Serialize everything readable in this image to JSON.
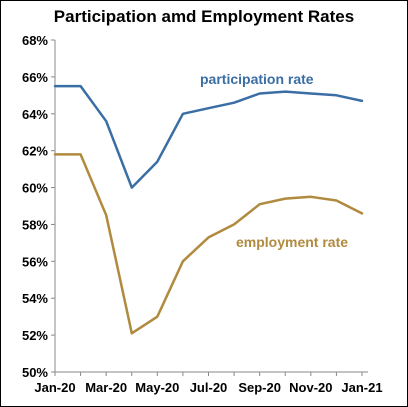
{
  "chart_data": {
    "type": "line",
    "title": "Participation amd Employment Rates",
    "xlabel": "",
    "ylabel": "",
    "x": [
      "Jan-20",
      "Feb-20",
      "Mar-20",
      "Apr-20",
      "May-20",
      "Jun-20",
      "Jul-20",
      "Aug-20",
      "Sep-20",
      "Oct-20",
      "Nov-20",
      "Dec-20",
      "Jan-21"
    ],
    "x_tick_labels": [
      "Jan-20",
      "Mar-20",
      "May-20",
      "Jul-20",
      "Sep-20",
      "Nov-20",
      "Jan-21"
    ],
    "y_tick_labels": [
      "50%",
      "52%",
      "54%",
      "56%",
      "58%",
      "60%",
      "62%",
      "64%",
      "66%",
      "68%"
    ],
    "ylim": [
      50,
      68
    ],
    "grid": false,
    "legend": "inline labels",
    "series": [
      {
        "name": "participation rate",
        "color": "#3a6ea5",
        "values": [
          65.5,
          65.5,
          63.6,
          60.0,
          61.4,
          64.0,
          64.3,
          64.6,
          65.1,
          65.2,
          65.1,
          65.0,
          64.7
        ]
      },
      {
        "name": "employment rate",
        "color": "#b08a3e",
        "values": [
          61.8,
          61.8,
          58.5,
          52.1,
          53.0,
          56.0,
          57.3,
          58.0,
          59.1,
          59.4,
          59.5,
          59.3,
          58.6
        ]
      }
    ]
  }
}
